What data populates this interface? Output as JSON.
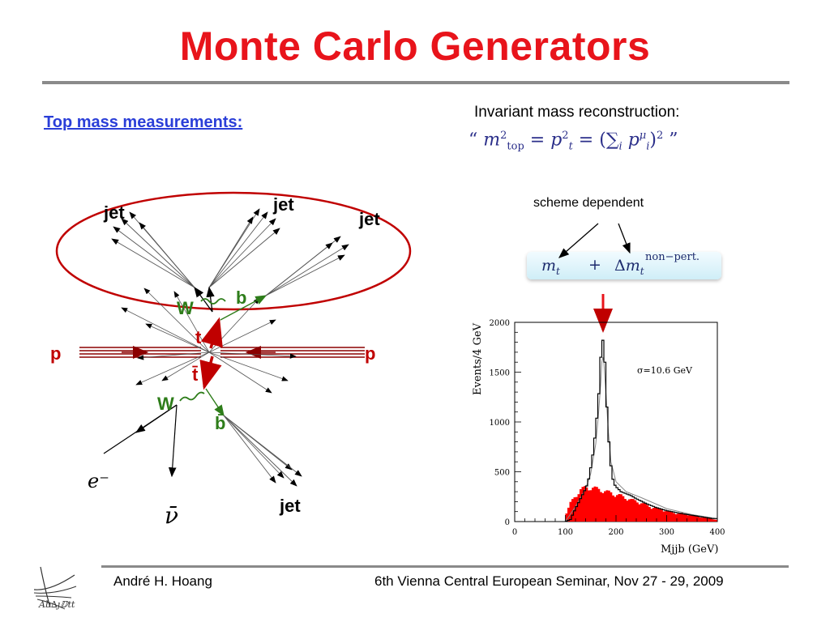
{
  "slide": {
    "title": "Monte Carlo Generators",
    "subheading": "Top mass measurements:",
    "invariant_label": "Invariant mass reconstruction:",
    "formula": "“ m²top = p²t = (Σi pμi)² ”",
    "scheme_label": "scheme dependent",
    "mass_expression": {
      "m": "mt",
      "plus": "+",
      "dm": "Δmt",
      "sup": "non−pert."
    },
    "footer_left": "André H. Hoang",
    "footer_right": "6th Vienna Central European Seminar, Nov 27 - 29, 2009",
    "logo_text": "Ab∆ȷⅅtt"
  },
  "diagram": {
    "labels": {
      "jet1": "jet",
      "jet2": "jet",
      "jet3": "jet",
      "jet4": "jet",
      "W1": "W",
      "W2": "W",
      "b": "b",
      "bbar": "b̄",
      "t": "t",
      "tbar": "t̄",
      "p_left": "p",
      "p_right": "p",
      "electron": "e⁻",
      "nubar": "ν̄"
    },
    "colors": {
      "red": "#c00000",
      "green": "#2e7d1a",
      "proton": "#8b0000"
    }
  },
  "chart_data": {
    "type": "bar",
    "xlabel": "Mjjb (GeV)",
    "ylabel": "Events/4 GeV",
    "annotation": "σ=10.6 GeV",
    "xlim": [
      0,
      400
    ],
    "ylim": [
      0,
      2000
    ],
    "x_ticks": [
      "0",
      "100",
      "200",
      "300",
      "400"
    ],
    "y_ticks": [
      "0",
      "500",
      "1000",
      "1500",
      "2000"
    ],
    "bin_width": 4,
    "series": [
      {
        "type": "step",
        "color": "#000000",
        "x": [
          100,
          110,
          120,
          130,
          140,
          145,
          150,
          155,
          160,
          165,
          168,
          170,
          172,
          174,
          176,
          178,
          180,
          184,
          188,
          192,
          196,
          200,
          210,
          220,
          230,
          240,
          260,
          280,
          300,
          330,
          360,
          390
        ],
        "values": [
          0,
          20,
          130,
          230,
          330,
          400,
          540,
          700,
          930,
          1200,
          1450,
          1650,
          1800,
          1820,
          1760,
          1600,
          1350,
          950,
          650,
          470,
          380,
          350,
          300,
          280,
          260,
          230,
          180,
          140,
          110,
          80,
          55,
          30
        ]
      },
      {
        "type": "fill",
        "color": "#ff0000",
        "x": [
          100,
          110,
          120,
          130,
          140,
          150,
          160,
          170,
          180,
          190,
          200,
          210,
          220,
          230,
          240,
          250,
          260,
          270,
          280,
          290,
          300,
          310,
          320,
          330,
          340,
          350,
          360,
          370,
          380,
          390,
          400
        ],
        "values": [
          60,
          180,
          250,
          310,
          330,
          330,
          320,
          310,
          290,
          280,
          260,
          250,
          230,
          210,
          200,
          180,
          160,
          140,
          130,
          120,
          100,
          90,
          80,
          80,
          70,
          60,
          50,
          40,
          35,
          25,
          15
        ]
      },
      {
        "type": "curve",
        "color": "#888888",
        "x": [
          100,
          120,
          140,
          150,
          160,
          165,
          170,
          172,
          174,
          176,
          180,
          185,
          190,
          200,
          220,
          250,
          300,
          350,
          400
        ],
        "values": [
          0,
          150,
          330,
          480,
          780,
          1050,
          1400,
          1600,
          1650,
          1600,
          1300,
          900,
          600,
          400,
          300,
          240,
          130,
          70,
          30
        ]
      }
    ]
  }
}
